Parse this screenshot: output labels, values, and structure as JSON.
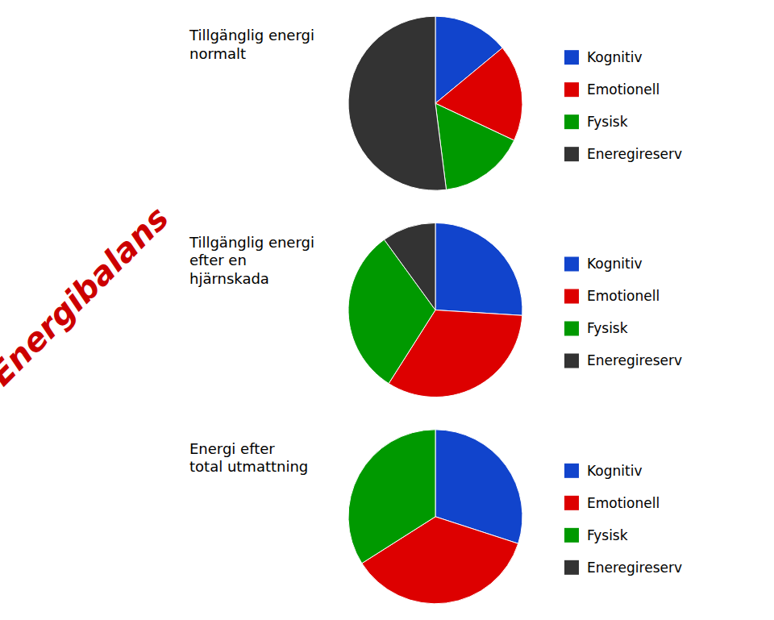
{
  "chart_data": [
    {
      "type": "pie",
      "title": "Tillgänglig energi\nnormalt",
      "categories": [
        "Kognitiv",
        "Emotionell",
        "Fysisk",
        "Eneregireserv"
      ],
      "values": [
        0.14,
        0.18,
        0.16,
        0.52
      ],
      "colors": [
        "#1144cc",
        "#dd0000",
        "#009900",
        "#333333"
      ],
      "legend": "right",
      "annotations": [
        {
          "text": "Energibalans",
          "color": "#cc0000"
        }
      ]
    },
    {
      "type": "pie",
      "title": "Tillgänglig energi\nefter en\nhjärnskada",
      "categories": [
        "Kognitiv",
        "Emotionell",
        "Fysisk",
        "Eneregireserv"
      ],
      "values": [
        0.26,
        0.33,
        0.31,
        0.1
      ],
      "colors": [
        "#1144cc",
        "#dd0000",
        "#009900",
        "#333333"
      ],
      "legend": "right"
    },
    {
      "type": "pie",
      "title": "Energi efter\ntotal utmattning",
      "categories": [
        "Kognitiv",
        "Emotionell",
        "Fysisk",
        "Eneregireserv"
      ],
      "values": [
        0.3,
        0.36,
        0.34,
        0.0
      ],
      "colors": [
        "#1144cc",
        "#dd0000",
        "#009900",
        "#333333"
      ],
      "legend": "right"
    }
  ]
}
